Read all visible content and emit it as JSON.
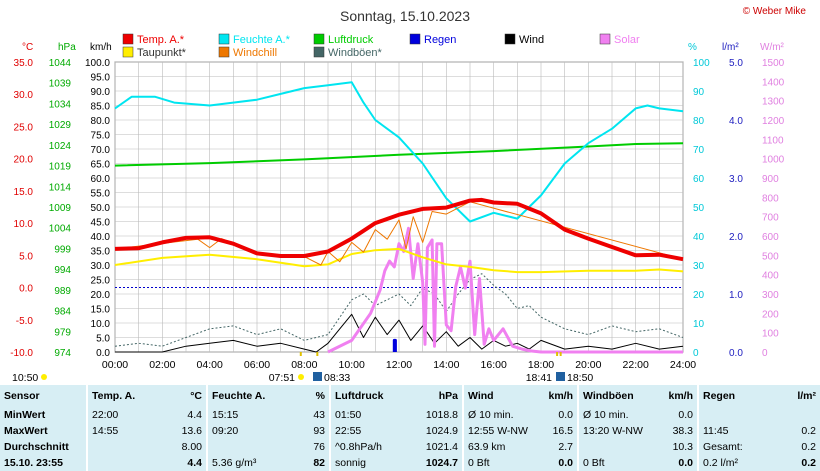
{
  "title": "Sonntag, 15.10.2023",
  "copyright": "© Weber Mike",
  "chart_data": {
    "type": "line",
    "x_ticks": [
      "00:00",
      "02:00",
      "04:00",
      "06:00",
      "08:00",
      "10:00",
      "12:00",
      "14:00",
      "16:00",
      "18:00",
      "20:00",
      "22:00",
      "24:00"
    ],
    "x_range": [
      0,
      24
    ],
    "axes": {
      "temp": {
        "label": "°C",
        "min": -10,
        "max": 35,
        "ticks": [
          "35.0",
          "30.0",
          "25.0",
          "20.0",
          "15.0",
          "10.0",
          "5.0",
          "0.0",
          "-5.0",
          "-10.0"
        ],
        "color": "#e00000"
      },
      "hpa": {
        "label": "hPa",
        "min": 974,
        "max": 1044,
        "ticks": [
          "1044",
          "1039",
          "1034",
          "1029",
          "1024",
          "1019",
          "1014",
          "1009",
          "1004",
          "999",
          "994",
          "989",
          "984",
          "979",
          "974"
        ],
        "color": "#00aa00"
      },
      "kmh": {
        "label": "km/h",
        "min": 0,
        "max": 100,
        "ticks": [
          "100.0",
          "95.0",
          "90.0",
          "85.0",
          "80.0",
          "75.0",
          "70.0",
          "65.0",
          "60.0",
          "55.0",
          "50.0",
          "45.0",
          "40.0",
          "35.0",
          "30.0",
          "25.0",
          "20.0",
          "15.0",
          "10.0",
          "5.0",
          "0.0"
        ],
        "color": "#000000"
      },
      "pct": {
        "label": "%",
        "min": 0,
        "max": 100,
        "ticks": [
          "100",
          "90",
          "80",
          "70",
          "60",
          "50",
          "40",
          "30",
          "20",
          "10",
          "0"
        ],
        "color": "#00c8d8"
      },
      "lm2": {
        "label": "l/m²",
        "min": 0,
        "max": 5,
        "ticks": [
          "5.0",
          "4.0",
          "3.0",
          "2.0",
          "1.0",
          "0.0"
        ],
        "color": "#2020c0"
      },
      "wm2": {
        "label": "W/m²",
        "min": 0,
        "max": 1500,
        "ticks": [
          "1500",
          "1400",
          "1300",
          "1200",
          "1100",
          "1000",
          "900",
          "800",
          "700",
          "600",
          "500",
          "400",
          "300",
          "200",
          "100",
          "0"
        ],
        "color": "#e080e0"
      }
    },
    "legend": [
      {
        "name": "Temp. A.*",
        "color": "#ee0000"
      },
      {
        "name": "Feuchte A.*",
        "color": "#00e5f0"
      },
      {
        "name": "Luftdruck",
        "color": "#00cc00"
      },
      {
        "name": "Regen",
        "color": "#0000dd"
      },
      {
        "name": "Wind",
        "color": "#000000"
      },
      {
        "name": "Solar",
        "color": "#f080f0"
      },
      {
        "name": "Taupunkt*",
        "color": "#ffee00"
      },
      {
        "name": "Windchill",
        "color": "#ee7700"
      },
      {
        "name": "Windböen*",
        "color": "#446666"
      }
    ],
    "series": [
      {
        "name": "Temp. A.*",
        "axis": "temp",
        "points": [
          [
            0,
            6.0
          ],
          [
            1,
            6.1
          ],
          [
            2,
            7.0
          ],
          [
            3,
            7.7
          ],
          [
            4,
            7.8
          ],
          [
            5,
            6.8
          ],
          [
            6,
            5.3
          ],
          [
            7,
            4.9
          ],
          [
            8,
            4.9
          ],
          [
            9,
            5.6
          ],
          [
            10,
            7.6
          ],
          [
            11,
            10.0
          ],
          [
            12,
            11.3
          ],
          [
            13,
            12.2
          ],
          [
            14,
            12.4
          ],
          [
            15,
            13.5
          ],
          [
            15.5,
            13.6
          ],
          [
            16,
            13.2
          ],
          [
            17,
            13.0
          ],
          [
            18,
            11.5
          ],
          [
            19,
            9.0
          ],
          [
            20,
            7.6
          ],
          [
            21,
            6.3
          ],
          [
            22,
            5.0
          ],
          [
            23,
            5.1
          ],
          [
            24,
            4.4
          ]
        ]
      },
      {
        "name": "Feuchte A.*",
        "axis": "pct",
        "points": [
          [
            0,
            84
          ],
          [
            0.7,
            88
          ],
          [
            1.7,
            88
          ],
          [
            2.5,
            86
          ],
          [
            4,
            85
          ],
          [
            5,
            86
          ],
          [
            6,
            87
          ],
          [
            7,
            89
          ],
          [
            8,
            91
          ],
          [
            9,
            92
          ],
          [
            10,
            93
          ],
          [
            10.5,
            86
          ],
          [
            11,
            80
          ],
          [
            12,
            74
          ],
          [
            13,
            65
          ],
          [
            14,
            53
          ],
          [
            15,
            45
          ],
          [
            16,
            48
          ],
          [
            17,
            46
          ],
          [
            18,
            54
          ],
          [
            19,
            65
          ],
          [
            20,
            72
          ],
          [
            21,
            77
          ],
          [
            22,
            84
          ],
          [
            22.5,
            85
          ],
          [
            23,
            84
          ],
          [
            24,
            83
          ]
        ]
      },
      {
        "name": "Luftdruck",
        "axis": "hpa",
        "points": [
          [
            0,
            1019.0
          ],
          [
            4,
            1019.6
          ],
          [
            8,
            1020.5
          ],
          [
            12,
            1021.6
          ],
          [
            16,
            1022.5
          ],
          [
            20,
            1023.6
          ],
          [
            22,
            1024.2
          ],
          [
            24,
            1024.4
          ]
        ]
      },
      {
        "name": "Taupunkt*",
        "axis": "temp",
        "points": [
          [
            0,
            3.5
          ],
          [
            2,
            4.6
          ],
          [
            4,
            5.1
          ],
          [
            6,
            4.4
          ],
          [
            8,
            3.3
          ],
          [
            9,
            3.6
          ],
          [
            10,
            5.2
          ],
          [
            11,
            5.8
          ],
          [
            12,
            6.0
          ],
          [
            13,
            4.7
          ],
          [
            14,
            3.6
          ],
          [
            15,
            3.2
          ],
          [
            16,
            2.7
          ],
          [
            17,
            2.4
          ],
          [
            18,
            2.4
          ],
          [
            20,
            2.6
          ],
          [
            22,
            2.6
          ],
          [
            23,
            2.8
          ],
          [
            24,
            2.5
          ]
        ]
      },
      {
        "name": "Windchill",
        "axis": "temp",
        "points": [
          [
            0,
            6.0
          ],
          [
            3.5,
            7.5
          ],
          [
            4,
            6.2
          ],
          [
            4.5,
            7.6
          ],
          [
            6,
            5.3
          ],
          [
            8,
            4.8
          ],
          [
            8.7,
            3.5
          ],
          [
            9,
            5.6
          ],
          [
            9.5,
            4.0
          ],
          [
            10,
            7.0
          ],
          [
            10.5,
            5.5
          ],
          [
            11,
            9.0
          ],
          [
            11.5,
            7.5
          ],
          [
            12,
            10.5
          ],
          [
            12.3,
            6.0
          ],
          [
            12.6,
            11.0
          ],
          [
            13,
            7.0
          ],
          [
            13.4,
            11.8
          ],
          [
            14,
            11.4
          ],
          [
            15,
            13.3
          ],
          [
            24,
            4.4
          ]
        ]
      },
      {
        "name": "Solar",
        "axis": "wm2",
        "points": [
          [
            9,
            0
          ],
          [
            10,
            60
          ],
          [
            10.8,
            200
          ],
          [
            11.2,
            320
          ],
          [
            11.4,
            420
          ],
          [
            11.6,
            470
          ],
          [
            11.8,
            440
          ],
          [
            12,
            560
          ],
          [
            12.2,
            520
          ],
          [
            12.4,
            640
          ],
          [
            12.6,
            380
          ],
          [
            12.8,
            560
          ],
          [
            13,
            360
          ],
          [
            13.1,
            40
          ],
          [
            13.2,
            540
          ],
          [
            13.4,
            580
          ],
          [
            13.5,
            30
          ],
          [
            13.6,
            560
          ],
          [
            13.8,
            560
          ],
          [
            14,
            140
          ],
          [
            14.2,
            110
          ],
          [
            14.4,
            340
          ],
          [
            14.6,
            440
          ],
          [
            14.8,
            330
          ],
          [
            15,
            470
          ],
          [
            15.2,
            90
          ],
          [
            15.4,
            380
          ],
          [
            15.6,
            40
          ],
          [
            15.8,
            120
          ],
          [
            16,
            60
          ],
          [
            16.4,
            120
          ],
          [
            16.8,
            30
          ],
          [
            17.2,
            15
          ],
          [
            17.6,
            5
          ],
          [
            18,
            0
          ],
          [
            24,
            0
          ]
        ]
      },
      {
        "name": "Wind",
        "axis": "kmh",
        "points": [
          [
            0,
            0
          ],
          [
            2,
            0
          ],
          [
            3,
            2
          ],
          [
            4,
            3
          ],
          [
            5,
            4
          ],
          [
            6,
            2
          ],
          [
            7,
            3
          ],
          [
            8,
            1
          ],
          [
            8.5,
            0
          ],
          [
            9,
            3
          ],
          [
            9.5,
            8
          ],
          [
            10,
            13
          ],
          [
            10.5,
            5
          ],
          [
            11,
            12
          ],
          [
            11.5,
            6
          ],
          [
            12,
            11
          ],
          [
            12.5,
            4
          ],
          [
            13,
            9
          ],
          [
            13.5,
            3
          ],
          [
            14,
            7
          ],
          [
            14.5,
            2
          ],
          [
            15,
            5
          ],
          [
            15.5,
            1
          ],
          [
            16,
            4
          ],
          [
            16.5,
            2
          ],
          [
            17,
            3
          ],
          [
            17.5,
            1
          ],
          [
            18,
            4
          ],
          [
            19,
            1
          ],
          [
            20,
            2
          ],
          [
            21,
            1
          ],
          [
            22,
            3
          ],
          [
            23,
            1
          ],
          [
            24,
            2
          ]
        ]
      },
      {
        "name": "Windböen*",
        "axis": "kmh",
        "points": [
          [
            0,
            2
          ],
          [
            1,
            3
          ],
          [
            2,
            2
          ],
          [
            3,
            5
          ],
          [
            4,
            8
          ],
          [
            5,
            9
          ],
          [
            6,
            6
          ],
          [
            7,
            8
          ],
          [
            8,
            4
          ],
          [
            9,
            6
          ],
          [
            10,
            18
          ],
          [
            10.5,
            20
          ],
          [
            11,
            16
          ],
          [
            12,
            20
          ],
          [
            12.5,
            16
          ],
          [
            13,
            22
          ],
          [
            13.5,
            20
          ],
          [
            14,
            14
          ],
          [
            14.5,
            20
          ],
          [
            15,
            25
          ],
          [
            15.5,
            27
          ],
          [
            16,
            23
          ],
          [
            16.5,
            20
          ],
          [
            17,
            15
          ],
          [
            17.5,
            16
          ],
          [
            18,
            12
          ],
          [
            19,
            8
          ],
          [
            20,
            6
          ],
          [
            21,
            9
          ],
          [
            22,
            7
          ],
          [
            23,
            8
          ],
          [
            24,
            5
          ]
        ]
      },
      {
        "name": "Regen",
        "axis": "lm2",
        "points": [
          [
            11.8,
            0
          ],
          [
            11.8,
            0.2
          ],
          [
            11.85,
            0.2
          ],
          [
            11.85,
            0
          ]
        ]
      }
    ],
    "freeze_line_label": "0.0",
    "left_time": "10:50",
    "sunrise": "07:51",
    "sunrise_end": "08:33",
    "sunset": "18:41",
    "sunset_end": "18:50"
  },
  "sensor_table": {
    "header": [
      "Sensor",
      "Temp. A.",
      "°C",
      "Feuchte A.",
      "%",
      "Luftdruck",
      "hPa",
      "Wind",
      "km/h",
      "Windböen",
      "km/h",
      "Regen",
      "l/m²"
    ],
    "rows": [
      [
        "MinWert",
        "22:00",
        "4.4",
        "15:15",
        "43",
        "01:50",
        "1018.8",
        "Ø 10 min.",
        "0.0",
        "Ø 10 min.",
        "0.0",
        "",
        ""
      ],
      [
        "MaxWert",
        "14:55",
        "13.6",
        "09:20",
        "93",
        "22:55",
        "1024.9",
        "12:55   W-NW",
        "16.5",
        "13:20   W-NW",
        "38.3",
        "11:45",
        "0.2"
      ],
      [
        "Durchschnitt",
        "",
        "8.00",
        "",
        "76",
        "^0.8hPa/h",
        "1021.4",
        "63.9 km",
        "2.7",
        "",
        "10.3",
        "Gesamt:",
        "0.2"
      ],
      [
        "15.10. 23:55",
        "",
        "4.4",
        "5.36 g/m³",
        "82",
        "sonnig",
        "1024.7",
        "0 Bft",
        "0.0",
        "0 Bft",
        "0.0",
        "0.2 l/m²",
        "0.2"
      ]
    ]
  }
}
